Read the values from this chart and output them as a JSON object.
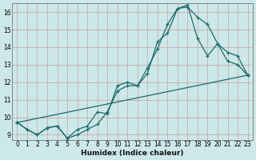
{
  "xlabel": "Humidex (Indice chaleur)",
  "background_color": "#cce8e8",
  "grid_color_major": "#e8b0b0",
  "grid_color_minor": "#e8c8c8",
  "line_color": "#1a6b6b",
  "xlim": [
    -0.5,
    23.5
  ],
  "ylim": [
    8.7,
    16.5
  ],
  "yticks": [
    9,
    10,
    11,
    12,
    13,
    14,
    15,
    16
  ],
  "xticks": [
    0,
    1,
    2,
    3,
    4,
    5,
    6,
    7,
    8,
    9,
    10,
    11,
    12,
    13,
    14,
    15,
    16,
    17,
    18,
    19,
    20,
    21,
    22,
    23
  ],
  "curve1_x": [
    0,
    1,
    2,
    3,
    4,
    5,
    6,
    7,
    8,
    9,
    10,
    11,
    12,
    13,
    14,
    15,
    16,
    17,
    18,
    19,
    20,
    21,
    22,
    23
  ],
  "curve1_y": [
    9.7,
    9.3,
    9.0,
    9.4,
    9.5,
    8.8,
    9.0,
    9.3,
    9.6,
    10.3,
    11.5,
    11.8,
    11.8,
    12.8,
    13.9,
    15.3,
    16.2,
    16.3,
    15.7,
    15.3,
    14.2,
    13.7,
    13.5,
    12.4
  ],
  "curve2_x": [
    0,
    1,
    2,
    3,
    4,
    5,
    6,
    7,
    8,
    9,
    10,
    11,
    12,
    13,
    14,
    15,
    16,
    17,
    18,
    19,
    20,
    21,
    22,
    23
  ],
  "curve2_y": [
    9.7,
    9.3,
    9.0,
    9.4,
    9.5,
    8.8,
    9.3,
    9.5,
    10.3,
    10.2,
    11.8,
    12.0,
    11.8,
    12.5,
    14.3,
    14.8,
    16.2,
    16.4,
    14.5,
    13.5,
    14.2,
    13.2,
    13.0,
    12.4
  ],
  "curve3_x": [
    0,
    23
  ],
  "curve3_y": [
    9.7,
    12.4
  ],
  "xlabel_fontsize": 6.5,
  "tick_fontsize": 5.5
}
